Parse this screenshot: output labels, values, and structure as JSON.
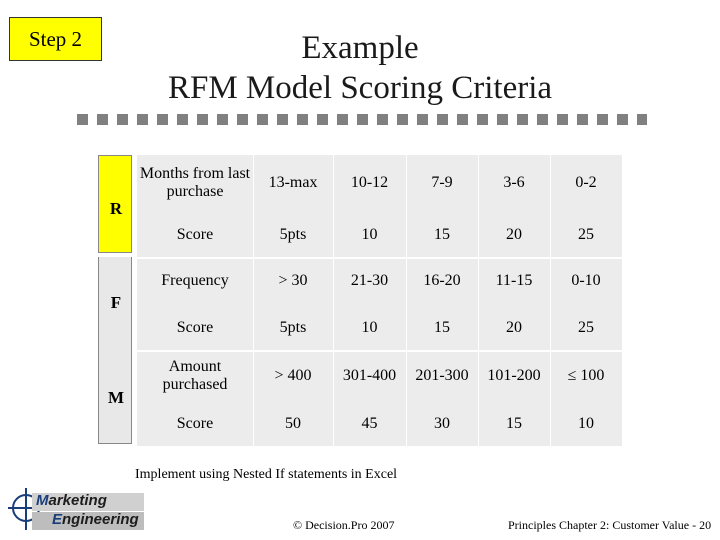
{
  "step_label": "Step 2",
  "title_line1": "Example",
  "title_line2": "RFM Model Scoring Criteria",
  "rows": [
    {
      "group": "R",
      "label": "Months from last purchase",
      "values": [
        "13-max",
        "10-12",
        "7-9",
        "3-6",
        "0-2"
      ]
    },
    {
      "group": "R",
      "label": "Score",
      "values": [
        "5pts",
        "10",
        "15",
        "20",
        "25"
      ]
    },
    {
      "group": "F",
      "label": "Frequency",
      "values": [
        "> 30",
        "21-30",
        "16-20",
        "11-15",
        "0-10"
      ]
    },
    {
      "group": "F",
      "label": "Score",
      "values": [
        "5pts",
        "10",
        "15",
        "20",
        "25"
      ]
    },
    {
      "group": "M",
      "label": "Amount purchased",
      "values": [
        "> 400",
        "301-400",
        "201-300",
        "101-200",
        "≤ 100"
      ]
    },
    {
      "group": "M",
      "label": "Score",
      "values": [
        "50",
        "45",
        "30",
        "15",
        "10"
      ]
    }
  ],
  "groups": {
    "r": "R",
    "f": "F",
    "m": "M"
  },
  "note": "Implement using Nested If statements in Excel",
  "copyright": "© Decision.Pro 2007",
  "footer": "Principles Chapter 2: Customer Value - 20",
  "logo": {
    "line1_first": "M",
    "line1_rest": "arketing",
    "line2_first": "E",
    "line2_rest": "ngineering"
  },
  "colors": {
    "step_bg": "#ffff00",
    "r_bracket": "#ffff00",
    "table_bg": "#ececec"
  }
}
